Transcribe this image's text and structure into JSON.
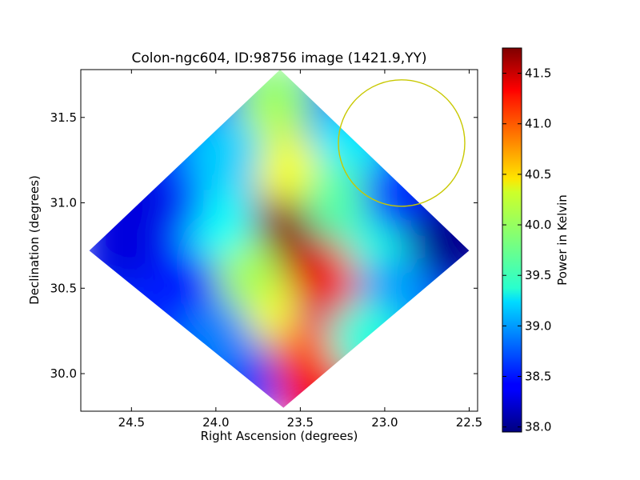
{
  "chart_data": {
    "type": "heatmap",
    "title": "Colon-ngc604, ID:98756 image (1421.9,YY)",
    "xlabel": "Right Ascension (degrees)",
    "ylabel": "Declination (degrees)",
    "xlim": [
      24.8,
      22.45
    ],
    "ylim": [
      29.78,
      31.78
    ],
    "x_ticks": [
      24.5,
      24.0,
      23.5,
      23.0,
      22.5
    ],
    "x_tick_labels": [
      "24.5",
      "24.0",
      "23.5",
      "23.0",
      "22.5"
    ],
    "y_ticks": [
      30.0,
      30.5,
      31.0,
      31.5
    ],
    "y_tick_labels": [
      "30.0",
      "30.5",
      "31.0",
      "31.5"
    ],
    "colorbar": {
      "label": "Power in Kelvin",
      "range": [
        37.95,
        41.75
      ],
      "ticks": [
        38.0,
        38.5,
        39.0,
        39.5,
        40.0,
        40.5,
        41.0,
        41.5
      ],
      "tick_labels": [
        "38.0",
        "38.5",
        "39.0",
        "39.5",
        "40.0",
        "40.5",
        "41.0",
        "41.5"
      ],
      "colormap": "jet"
    },
    "map_footprint": [
      [
        23.62,
        31.78
      ],
      [
        22.5,
        30.72
      ],
      [
        23.6,
        29.8
      ],
      [
        24.75,
        30.72
      ]
    ],
    "temperature_samples": [
      {
        "ra": 23.65,
        "dec": 31.6,
        "value": 39.9
      },
      {
        "ra": 23.7,
        "dec": 31.35,
        "value": 40.1
      },
      {
        "ra": 23.55,
        "dec": 31.15,
        "value": 40.3
      },
      {
        "ra": 23.6,
        "dec": 30.8,
        "value": 41.7
      },
      {
        "ra": 23.35,
        "dec": 30.55,
        "value": 41.4
      },
      {
        "ra": 23.15,
        "dec": 30.55,
        "value": 41.2
      },
      {
        "ra": 23.45,
        "dec": 30.1,
        "value": 40.9
      },
      {
        "ra": 23.4,
        "dec": 29.9,
        "value": 41.3
      },
      {
        "ra": 23.75,
        "dec": 30.4,
        "value": 40.3
      },
      {
        "ra": 23.85,
        "dec": 30.6,
        "value": 40.0
      },
      {
        "ra": 24.0,
        "dec": 30.9,
        "value": 39.4
      },
      {
        "ra": 24.3,
        "dec": 31.0,
        "value": 38.6
      },
      {
        "ra": 24.5,
        "dec": 31.0,
        "value": 38.3
      },
      {
        "ra": 24.55,
        "dec": 30.75,
        "value": 38.3
      },
      {
        "ra": 24.2,
        "dec": 30.5,
        "value": 38.5
      },
      {
        "ra": 24.0,
        "dec": 30.2,
        "value": 38.9
      },
      {
        "ra": 23.95,
        "dec": 31.3,
        "value": 39.2
      },
      {
        "ra": 23.2,
        "dec": 31.35,
        "value": 39.3
      },
      {
        "ra": 23.25,
        "dec": 31.0,
        "value": 39.7
      },
      {
        "ra": 23.0,
        "dec": 30.75,
        "value": 39.5
      },
      {
        "ra": 22.9,
        "dec": 31.05,
        "value": 38.6
      },
      {
        "ra": 22.65,
        "dec": 30.8,
        "value": 38.1
      },
      {
        "ra": 22.55,
        "dec": 30.75,
        "value": 38.0
      },
      {
        "ra": 22.95,
        "dec": 30.45,
        "value": 39.0
      },
      {
        "ra": 23.1,
        "dec": 30.2,
        "value": 39.5
      }
    ],
    "annotations": [
      {
        "type": "circle",
        "center_ra": 22.9,
        "center_dec": 31.35,
        "radius_deg": 0.37,
        "color": "#c8c800"
      }
    ],
    "grid": false,
    "colors": {
      "circle": "#c8c800",
      "axes": "#000000"
    }
  }
}
